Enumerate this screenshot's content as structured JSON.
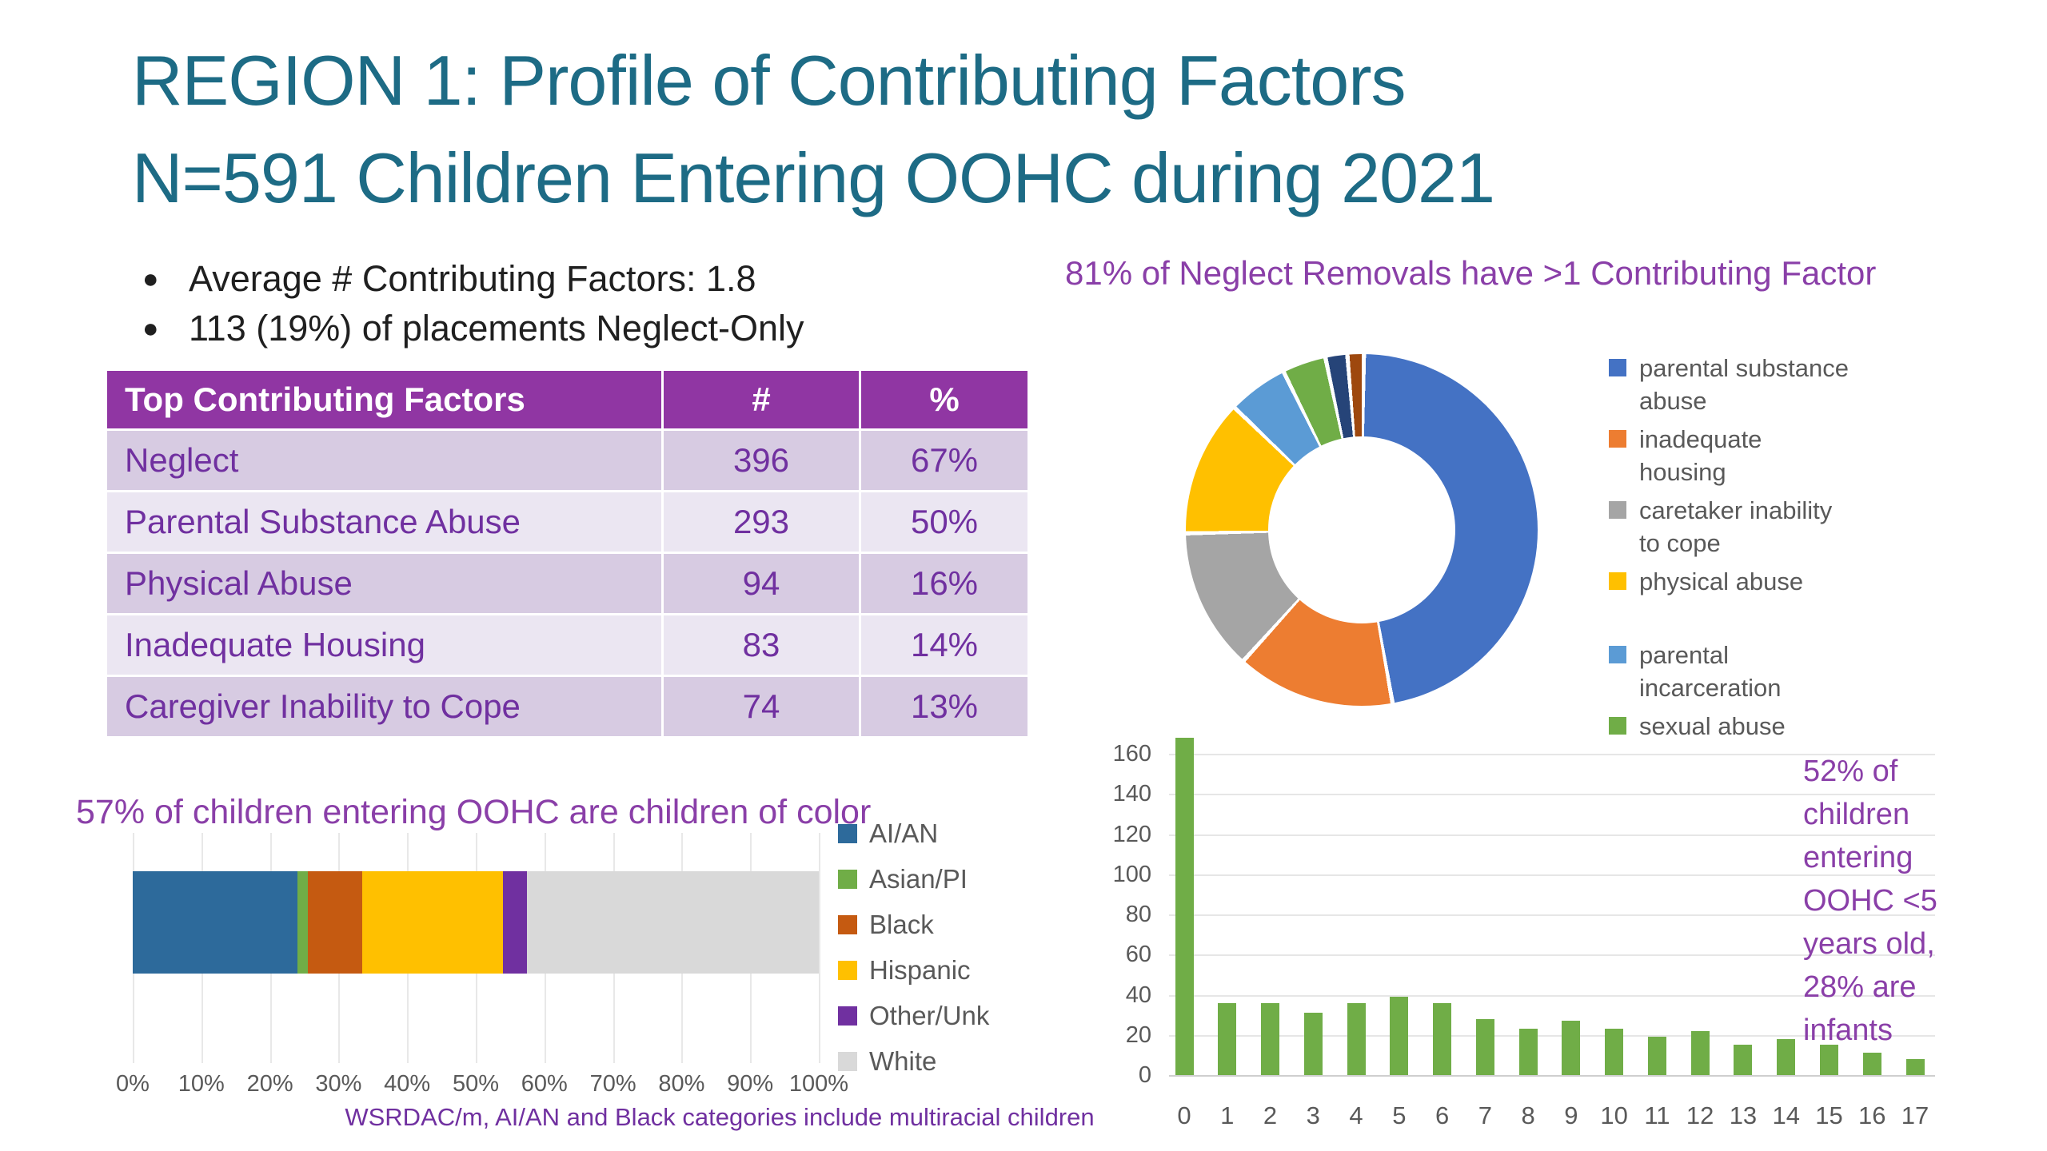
{
  "slide": {
    "title_line1": "REGION 1: Profile of Contributing Factors",
    "title_line2": "N=591 Children Entering OOHC during 2021",
    "bullets": [
      "Average # Contributing Factors: 1.8",
      "113 (19%) of placements Neglect-Only"
    ],
    "footer_note": "WSRDAC/m, AI/AN and Black categories include multiracial children"
  },
  "factors_table": {
    "headers": [
      "Top Contributing Factors",
      "#",
      "%"
    ],
    "rows": [
      {
        "factor": "Neglect",
        "count": "396",
        "percent": "67%"
      },
      {
        "factor": "Parental Substance Abuse",
        "count": "293",
        "percent": "50%"
      },
      {
        "factor": "Physical Abuse",
        "count": "94",
        "percent": "16%"
      },
      {
        "factor": "Inadequate Housing",
        "count": "83",
        "percent": "14%"
      },
      {
        "factor": "Caregiver Inability to Cope",
        "count": "74",
        "percent": "13%"
      }
    ]
  },
  "chart_data": [
    {
      "type": "pie",
      "subtype": "donut",
      "title": "81% of Neglect Removals have >1 Contributing Factor",
      "unit": "percent (estimated from slice angles)",
      "legend_position": "right",
      "slices": [
        {
          "label": "parental substance abuse",
          "value": 47,
          "color": "#4472c4"
        },
        {
          "label": "inadequate housing",
          "value": 14.5,
          "color": "#ed7d31"
        },
        {
          "label": "caretaker inability to cope",
          "value": 13,
          "color": "#a5a5a5"
        },
        {
          "label": "physical abuse",
          "value": 12.5,
          "color": "#ffc000"
        },
        {
          "label": "parental incarceration",
          "value": 5.5,
          "color": "#5b9bd5"
        },
        {
          "label": "sexual abuse",
          "value": 4,
          "color": "#70ad47"
        },
        {
          "label": "",
          "value": 2,
          "color": "#264478"
        },
        {
          "label": "",
          "value": 1.5,
          "color": "#9e480e"
        }
      ],
      "legend": [
        {
          "label": "parental substance\nabuse",
          "color": "#4472c4",
          "gap_after": false
        },
        {
          "label": "inadequate\nhousing",
          "color": "#ed7d31",
          "gap_after": false
        },
        {
          "label": "caretaker inability\nto cope",
          "color": "#a5a5a5",
          "gap_after": false
        },
        {
          "label": "physical abuse",
          "color": "#ffc000",
          "gap_after": true
        },
        {
          "label": "parental\nincarceration",
          "color": "#5b9bd5",
          "gap_after": false
        },
        {
          "label": "sexual abuse",
          "color": "#70ad47",
          "gap_after": false
        }
      ]
    },
    {
      "type": "bar",
      "subtype": "stacked-horizontal",
      "title": "57% of children entering OOHC are children of color",
      "categories": [
        "children entering OOHC"
      ],
      "series": [
        {
          "name": "AI/AN",
          "values": [
            24
          ],
          "color": "#2d6a9b"
        },
        {
          "name": "Asian/PI",
          "values": [
            1.5
          ],
          "color": "#70ad47"
        },
        {
          "name": "Black",
          "values": [
            8
          ],
          "color": "#c55a11"
        },
        {
          "name": "Hispanic",
          "values": [
            20.5
          ],
          "color": "#ffc000"
        },
        {
          "name": "Other/Unk",
          "values": [
            3.5
          ],
          "color": "#7030a0"
        },
        {
          "name": "White",
          "values": [
            42.5
          ],
          "color": "#d9d9d9"
        }
      ],
      "x_ticks": [
        "0%",
        "10%",
        "20%",
        "30%",
        "40%",
        "50%",
        "60%",
        "70%",
        "80%",
        "90%",
        "100%"
      ],
      "xlim": [
        0,
        100
      ],
      "grid": true,
      "legend_position": "right"
    },
    {
      "type": "bar",
      "subtype": "vertical",
      "categories": [
        "0",
        "1",
        "2",
        "3",
        "4",
        "5",
        "6",
        "7",
        "8",
        "9",
        "10",
        "11",
        "12",
        "13",
        "14",
        "15",
        "16",
        "17"
      ],
      "values": [
        168,
        36,
        36,
        31,
        36,
        39,
        36,
        28,
        23,
        27,
        23,
        19,
        22,
        15,
        18,
        15,
        11,
        8
      ],
      "bar_color": "#70ad47",
      "ylim": [
        0,
        160
      ],
      "y_ticks": [
        0,
        20,
        40,
        60,
        80,
        100,
        120,
        140,
        160
      ],
      "grid": true,
      "annotation": "52% of\nchildren\nentering\nOOHC <5\nyears old,\n28% are\ninfants"
    }
  ],
  "colors": {
    "title_teal": "#1d6b85",
    "purple_heading": "#8a3fa8",
    "table_header_bg": "#9036a3",
    "table_row_dark": "#d7cbe2",
    "table_row_light": "#ebe6f2",
    "table_text": "#7030a0",
    "body_text": "#1f1f1f",
    "axis_text": "#595959",
    "gridline": "#e6e6e6",
    "background": "#ffffff"
  }
}
